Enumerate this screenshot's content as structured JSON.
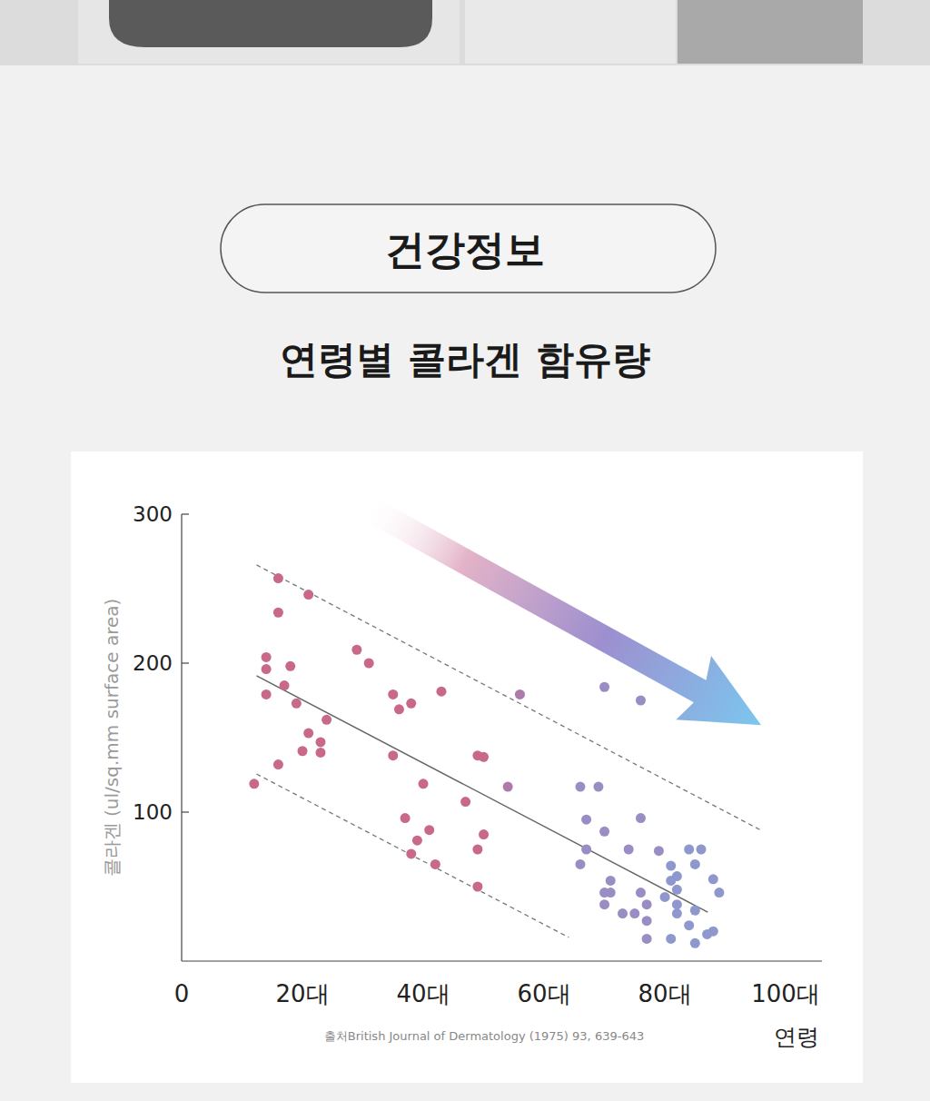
{
  "header": {
    "badge": "건강정보"
  },
  "chart_data": {
    "type": "scatter",
    "title": "연령별 콜라겐 함유량",
    "x_label": "연령",
    "y_label": "콜라겐 (ul/sq.mm surface area)",
    "source": "출처British Journal of Dermatology (1975) 93, 639-643",
    "xlim": [
      0,
      106
    ],
    "ylim": [
      0,
      300
    ],
    "xticks": [
      0,
      {
        "value": 20,
        "label": "20대"
      },
      {
        "value": 40,
        "label": "40대"
      },
      {
        "value": 60,
        "label": "60대"
      },
      {
        "value": 80,
        "label": "80대"
      },
      {
        "value": 100,
        "label": "100대"
      }
    ],
    "yticks": [
      100,
      200,
      300
    ],
    "grid": false,
    "series": [
      {
        "type": "scatter",
        "marker": "circle",
        "x": [
          12,
          16,
          16,
          14,
          14,
          14,
          16,
          17,
          18,
          19,
          21,
          21,
          20,
          23,
          23,
          24,
          29,
          31,
          35,
          36,
          38,
          35,
          43,
          40,
          37,
          41,
          39,
          38,
          42,
          47,
          49,
          50,
          50,
          49,
          49,
          54,
          56,
          66,
          69,
          70,
          76,
          67,
          70,
          76,
          67,
          66,
          71,
          70,
          71,
          70,
          74,
          73,
          75,
          76,
          77,
          77,
          77,
          79,
          81,
          82,
          81,
          82,
          80,
          82,
          82,
          81,
          84,
          86,
          85,
          85,
          84,
          85,
          87,
          88,
          88,
          89
        ],
        "values": [
          119,
          257,
          234,
          204,
          196,
          179,
          132,
          185,
          198,
          173,
          246,
          153,
          141,
          147,
          140,
          162,
          209,
          200,
          179,
          169,
          173,
          138,
          181,
          119,
          96,
          88,
          81,
          72,
          65,
          107,
          138,
          137,
          85,
          75,
          50,
          117,
          179,
          117,
          117,
          184,
          175,
          95,
          87,
          96,
          75,
          65,
          54,
          46,
          46,
          38,
          75,
          32,
          32,
          46,
          38,
          27,
          15,
          74,
          64,
          57,
          54,
          48,
          43,
          38,
          32,
          15,
          75,
          75,
          65,
          34,
          24,
          12,
          18,
          20,
          55,
          46
        ],
        "colors": [
          "#c8688b",
          "#c8688b",
          "#c8688b",
          "#c8688b",
          "#c8688b",
          "#c8688b",
          "#c8688b",
          "#c8688b",
          "#c8688b",
          "#c8688b",
          "#c8688b",
          "#c8688b",
          "#c8688b",
          "#c8688b",
          "#c8688b",
          "#c8688b",
          "#c8688b",
          "#c8688b",
          "#c8688b",
          "#c8688b",
          "#c8688b",
          "#c8688b",
          "#c8688b",
          "#c8688b",
          "#c8688b",
          "#c8688b",
          "#c8688b",
          "#c8688b",
          "#c8688b",
          "#c8688b",
          "#c8688b",
          "#c8688b",
          "#c8688b",
          "#c8688b",
          "#c8688b",
          "#ad7aa9",
          "#ad7aa9",
          "#9a8dc3",
          "#9a8dc3",
          "#9a8dc3",
          "#9a8dc3",
          "#9a8dc3",
          "#9a8dc3",
          "#9a8dc3",
          "#9a8dc3",
          "#9a8dc3",
          "#9a8dc3",
          "#9a8dc3",
          "#9a8dc3",
          "#9a8dc3",
          "#9a8dc3",
          "#9a8dc3",
          "#9a8dc3",
          "#9a8dc3",
          "#9a8dc3",
          "#9a8dc3",
          "#9a8dc3",
          "#9a8dc3",
          "#8e98cc",
          "#8e98cc",
          "#8e98cc",
          "#8e98cc",
          "#8e98cc",
          "#8e98cc",
          "#8e98cc",
          "#8e98cc",
          "#8e98cc",
          "#8e98cc",
          "#8e98cc",
          "#8e98cc",
          "#8e98cc",
          "#8e98cc",
          "#8e98cc",
          "#8e98cc",
          "#8e98cc",
          "#8e98cc"
        ]
      },
      {
        "type": "line",
        "line_style": "solid",
        "color": "#666666",
        "x": [
          12.4,
          87.1
        ],
        "values": [
          191.5,
          32.9
        ]
      },
      {
        "type": "line",
        "line_style": "dashed",
        "color": "#777777",
        "x": [
          12.4,
          96.2
        ],
        "values": [
          265.9,
          87.2
        ]
      },
      {
        "type": "line",
        "line_style": "dashed",
        "color": "#777777",
        "x": [
          12.4,
          64.1
        ],
        "values": [
          125.6,
          15.9
        ]
      }
    ]
  }
}
